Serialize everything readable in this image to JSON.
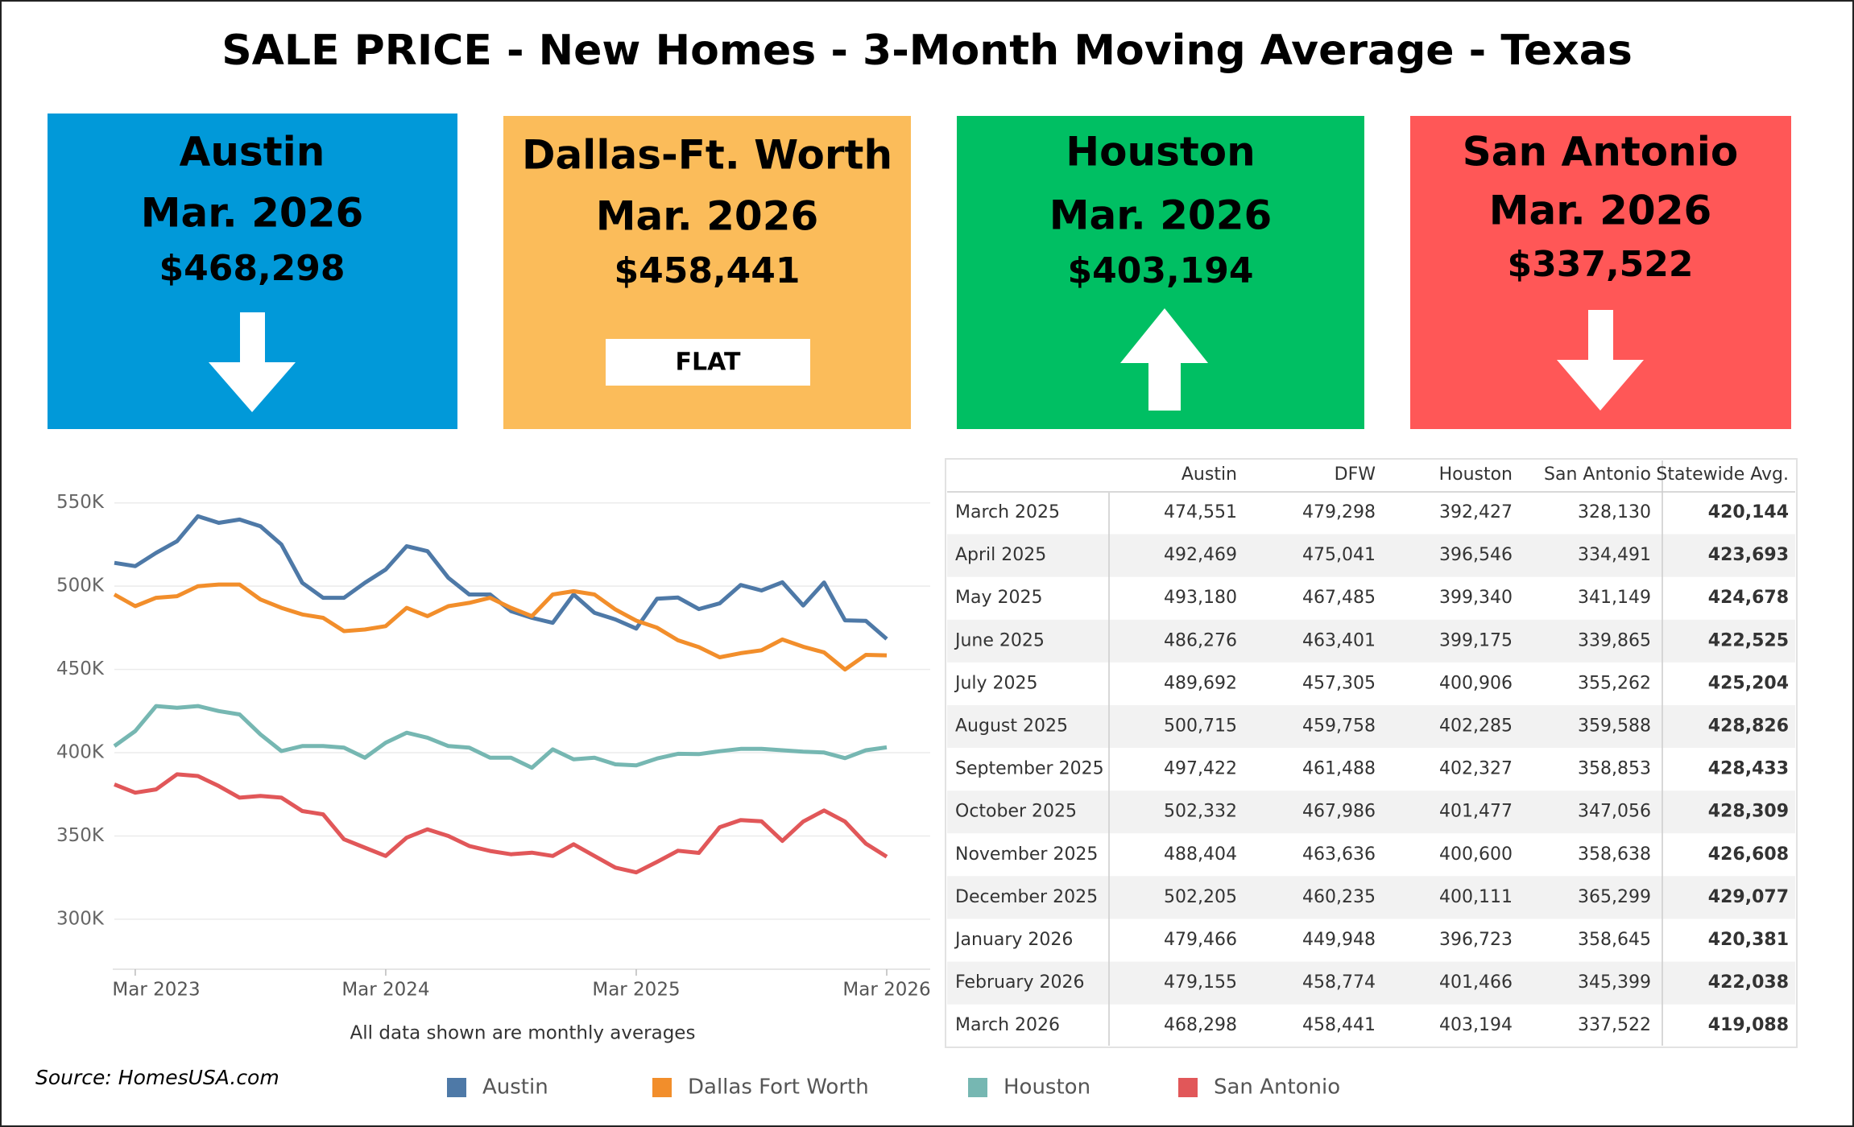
{
  "title": "SALE PRICE - New Homes - 3-Month Moving Average - Texas",
  "cards": [
    {
      "city": "Austin",
      "date": "Mar. 2026",
      "price": "$468,298"
    },
    {
      "city": "Dallas-Ft. Worth",
      "date": "Mar. 2026",
      "price": "$458,441",
      "status": "FLAT"
    },
    {
      "city": "Houston",
      "date": "Mar. 2026",
      "price": "$403,194"
    },
    {
      "city": "San Antonio",
      "date": "Mar. 2026",
      "price": "$337,522"
    }
  ],
  "source": "Source: HomesUSA.com",
  "chart_data": {
    "type": "line",
    "note": "All data shown are monthly averages",
    "x": [
      "2023-02",
      "2023-03",
      "2023-04",
      "2023-05",
      "2023-06",
      "2023-07",
      "2023-08",
      "2023-09",
      "2023-10",
      "2023-11",
      "2023-12",
      "2024-01",
      "2024-02",
      "2024-03",
      "2024-04",
      "2024-05",
      "2024-06",
      "2024-07",
      "2024-08",
      "2024-09",
      "2024-10",
      "2024-11",
      "2024-12",
      "2025-01",
      "2025-02",
      "2025-03",
      "2025-04",
      "2025-05",
      "2025-06",
      "2025-07",
      "2025-08",
      "2025-09",
      "2025-10",
      "2025-11",
      "2025-12",
      "2026-01",
      "2026-02",
      "2026-03"
    ],
    "xlim": [
      "2023-02",
      "2026-03"
    ],
    "xticks": [
      {
        "value": "2023-03",
        "label": "Mar 2023"
      },
      {
        "value": "2024-03",
        "label": "Mar 2024"
      },
      {
        "value": "2025-03",
        "label": "Mar 2025"
      },
      {
        "value": "2026-03",
        "label": "Mar 2026"
      }
    ],
    "ylim": [
      270000,
      575000
    ],
    "yticks": [
      {
        "value": 300000,
        "label": "300K"
      },
      {
        "value": 350000,
        "label": "350K"
      },
      {
        "value": 400000,
        "label": "400K"
      },
      {
        "value": 450000,
        "label": "450K"
      },
      {
        "value": 500000,
        "label": "500K"
      },
      {
        "value": 550000,
        "label": "550K"
      }
    ],
    "grid": true,
    "series": [
      {
        "name": "Austin",
        "color": "#4e79a7",
        "values": [
          514000,
          512000,
          520000,
          527000,
          542000,
          538000,
          540000,
          536000,
          525000,
          502000,
          493000,
          493000,
          502000,
          510000,
          524000,
          521000,
          505000,
          495000,
          495000,
          485000,
          481000,
          478000,
          495000,
          484000,
          480000,
          474551,
          492469,
          493180,
          486276,
          489692,
          500715,
          497422,
          502332,
          488404,
          502205,
          479466,
          479155,
          468298
        ]
      },
      {
        "name": "Dallas Fort Worth",
        "color": "#f28e2b",
        "values": [
          495000,
          488000,
          493000,
          494000,
          500000,
          501000,
          501000,
          492000,
          487000,
          483000,
          481000,
          473000,
          474000,
          476000,
          487000,
          482000,
          488000,
          490000,
          493000,
          487000,
          482000,
          495000,
          497000,
          495000,
          486000,
          479298,
          475041,
          467485,
          463401,
          457305,
          459758,
          461488,
          467986,
          463636,
          460235,
          449948,
          458774,
          458441
        ]
      },
      {
        "name": "Houston",
        "color": "#76b7b2",
        "values": [
          404000,
          413000,
          428000,
          427000,
          428000,
          425000,
          423000,
          411000,
          401000,
          404000,
          404000,
          403000,
          397000,
          406000,
          412000,
          409000,
          404000,
          403000,
          397000,
          397000,
          391000,
          402000,
          396000,
          397000,
          393000,
          392427,
          396546,
          399340,
          399175,
          400906,
          402285,
          402327,
          401477,
          400600,
          400111,
          396723,
          401466,
          403194
        ]
      },
      {
        "name": "San Antonio",
        "color": "#e15759",
        "values": [
          381000,
          376000,
          378000,
          387000,
          386000,
          380000,
          373000,
          374000,
          373000,
          365000,
          363000,
          348000,
          343000,
          338000,
          349000,
          354000,
          350000,
          344000,
          341000,
          339000,
          340000,
          338000,
          345000,
          338000,
          331000,
          328130,
          334491,
          341149,
          339865,
          355262,
          359588,
          358853,
          347056,
          358638,
          365299,
          358645,
          345399,
          337522
        ]
      }
    ]
  },
  "table": {
    "columns": [
      "Austin",
      "DFW",
      "Houston",
      "San Antonio",
      "Statewide Avg."
    ],
    "rows": [
      {
        "label": "March 2025",
        "values": [
          "474,551",
          "479,298",
          "392,427",
          "328,130",
          "420,144"
        ]
      },
      {
        "label": "April 2025",
        "values": [
          "492,469",
          "475,041",
          "396,546",
          "334,491",
          "423,693"
        ]
      },
      {
        "label": "May 2025",
        "values": [
          "493,180",
          "467,485",
          "399,340",
          "341,149",
          "424,678"
        ]
      },
      {
        "label": "June 2025",
        "values": [
          "486,276",
          "463,401",
          "399,175",
          "339,865",
          "422,525"
        ]
      },
      {
        "label": "July 2025",
        "values": [
          "489,692",
          "457,305",
          "400,906",
          "355,262",
          "425,204"
        ]
      },
      {
        "label": "August 2025",
        "values": [
          "500,715",
          "459,758",
          "402,285",
          "359,588",
          "428,826"
        ]
      },
      {
        "label": "September 2025",
        "values": [
          "497,422",
          "461,488",
          "402,327",
          "358,853",
          "428,433"
        ]
      },
      {
        "label": "October 2025",
        "values": [
          "502,332",
          "467,986",
          "401,477",
          "347,056",
          "428,309"
        ]
      },
      {
        "label": "November 2025",
        "values": [
          "488,404",
          "463,636",
          "400,600",
          "358,638",
          "426,608"
        ]
      },
      {
        "label": "December 2025",
        "values": [
          "502,205",
          "460,235",
          "400,111",
          "365,299",
          "429,077"
        ]
      },
      {
        "label": "January 2026",
        "values": [
          "479,466",
          "449,948",
          "396,723",
          "358,645",
          "420,381"
        ]
      },
      {
        "label": "February 2026",
        "values": [
          "479,155",
          "458,774",
          "401,466",
          "345,399",
          "422,038"
        ]
      },
      {
        "label": "March 2026",
        "values": [
          "468,298",
          "458,441",
          "403,194",
          "337,522",
          "419,088"
        ]
      }
    ]
  }
}
